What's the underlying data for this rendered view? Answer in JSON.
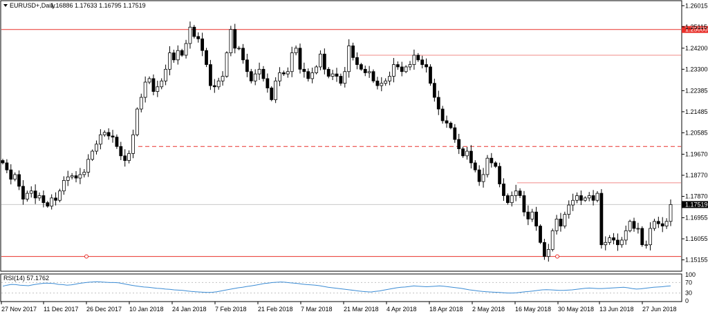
{
  "window": {
    "symbol_label": "EURUSD+,Daily",
    "ohlc_values": "1.16886 1.17633 1.16795 1.17519",
    "current_price": "1.17519",
    "resistance_tag": "1.25000"
  },
  "colors": {
    "background": "#ffffff",
    "candle": "#000000",
    "level_line": "#e8302a",
    "level_line_light": "#f08a86",
    "rsi_line": "#3a8bd4",
    "current_price_line": "#c8c8c8"
  },
  "chart_data": {
    "type": "candlestick",
    "symbol": "EURUSD+",
    "timeframe": "Daily",
    "y_ticks": [
      "1.26015",
      "1.25115",
      "1.24200",
      "1.23300",
      "1.22385",
      "1.21485",
      "1.20585",
      "1.19670",
      "1.18770",
      "1.17870",
      "1.16955",
      "1.16055",
      "1.15155"
    ],
    "ylim": [
      1.147,
      1.262
    ],
    "x_ticks": [
      "27 Nov 2017",
      "11 Dec 2017",
      "26 Dec 2017",
      "10 Jan 2018",
      "24 Jan 2018",
      "7 Feb 2018",
      "21 Feb 2018",
      "7 Mar 2018",
      "21 Mar 2018",
      "4 Apr 2018",
      "18 Apr 2018",
      "2 May 2018",
      "16 May 2018",
      "30 May 2018",
      "13 Jun 2018",
      "27 Jun 2018"
    ],
    "horizontal_levels": [
      {
        "price": 1.25,
        "style": "solid",
        "label": "1.25000"
      },
      {
        "price": 1.239,
        "style": "solid"
      },
      {
        "price": 1.2,
        "style": "dashed"
      },
      {
        "price": 1.1845,
        "style": "solid"
      },
      {
        "price": 1.153,
        "style": "solid"
      }
    ],
    "current_price": 1.17519,
    "closes": [
      1.193,
      1.19,
      1.186,
      1.188,
      1.183,
      1.1775,
      1.18,
      1.181,
      1.178,
      1.179,
      1.176,
      1.1745,
      1.178,
      1.177,
      1.181,
      1.1855,
      1.187,
      1.1875,
      1.1865,
      1.188,
      1.189,
      1.1945,
      1.198,
      1.201,
      1.205,
      1.206,
      1.2045,
      1.204,
      1.2,
      1.196,
      1.194,
      1.197,
      1.205,
      1.216,
      1.221,
      1.2275,
      1.229,
      1.2235,
      1.2255,
      1.228,
      1.233,
      1.24,
      1.237,
      1.241,
      1.239,
      1.244,
      1.251,
      1.247,
      1.246,
      1.241,
      1.235,
      1.226,
      1.2255,
      1.228,
      1.23,
      1.24,
      1.25,
      1.242,
      1.242,
      1.237,
      1.232,
      1.228,
      1.231,
      1.233,
      1.229,
      1.225,
      1.22,
      1.228,
      1.2315,
      1.231,
      1.232,
      1.24,
      1.242,
      1.233,
      1.232,
      1.229,
      1.2315,
      1.234,
      1.2395,
      1.233,
      1.23,
      1.231,
      1.23,
      1.227,
      1.232,
      1.243,
      1.238,
      1.235,
      1.233,
      1.2315,
      1.232,
      1.228,
      1.226,
      1.227,
      1.228,
      1.23,
      1.235,
      1.234,
      1.232,
      1.234,
      1.235,
      1.239,
      1.237,
      1.235,
      1.234,
      1.227,
      1.221,
      1.216,
      1.211,
      1.21,
      1.208,
      1.203,
      1.199,
      1.196,
      1.198,
      1.193,
      1.19,
      1.185,
      1.188,
      1.195,
      1.193,
      1.1915,
      1.184,
      1.179,
      1.176,
      1.179,
      1.181,
      1.179,
      1.172,
      1.169,
      1.172,
      1.166,
      1.159,
      1.153,
      1.156,
      1.164,
      1.169,
      1.166,
      1.171,
      1.175,
      1.177,
      1.179,
      1.177,
      1.178,
      1.179,
      1.177,
      1.18,
      1.158,
      1.159,
      1.161,
      1.16,
      1.158,
      1.16,
      1.164,
      1.168,
      1.165,
      1.165,
      1.158,
      1.158,
      1.165,
      1.168,
      1.167,
      1.166,
      1.168,
      1.1752
    ]
  },
  "rsi": {
    "label": "RSI(14) 57.1762",
    "levels": [
      "100",
      "70",
      "30",
      "0"
    ],
    "values": [
      56,
      60,
      63,
      62,
      60,
      59,
      58,
      61,
      64,
      66,
      68,
      67,
      66,
      63,
      62,
      60,
      61,
      64,
      67,
      69,
      71,
      72,
      73,
      72,
      71,
      70,
      70,
      69,
      66,
      63,
      60,
      57,
      55,
      53,
      52,
      50,
      48,
      47,
      45,
      44,
      42,
      41,
      40,
      38,
      36,
      35,
      34,
      33,
      32,
      33,
      35,
      38,
      41,
      44,
      47,
      50,
      52,
      55,
      57,
      60,
      63,
      66,
      68,
      70,
      71,
      72,
      71,
      69,
      68,
      66,
      64,
      62,
      61,
      60,
      58,
      55,
      52,
      50,
      48,
      46,
      44,
      42,
      40,
      38,
      36,
      35,
      34,
      36,
      38,
      41,
      44,
      47,
      50,
      52,
      53,
      55,
      57,
      56,
      55,
      54,
      55,
      56,
      57,
      56,
      54,
      52,
      50,
      48,
      45,
      42,
      40,
      38,
      36,
      35,
      34,
      33,
      32,
      31,
      30,
      30,
      31,
      33,
      35,
      36,
      38,
      40,
      42,
      43,
      42,
      41,
      40,
      40,
      41,
      42,
      44,
      46,
      48,
      49,
      48,
      47,
      47,
      48,
      49,
      50,
      51,
      52,
      50,
      47,
      45,
      46,
      48,
      50,
      52,
      53,
      54,
      56,
      57
    ]
  }
}
